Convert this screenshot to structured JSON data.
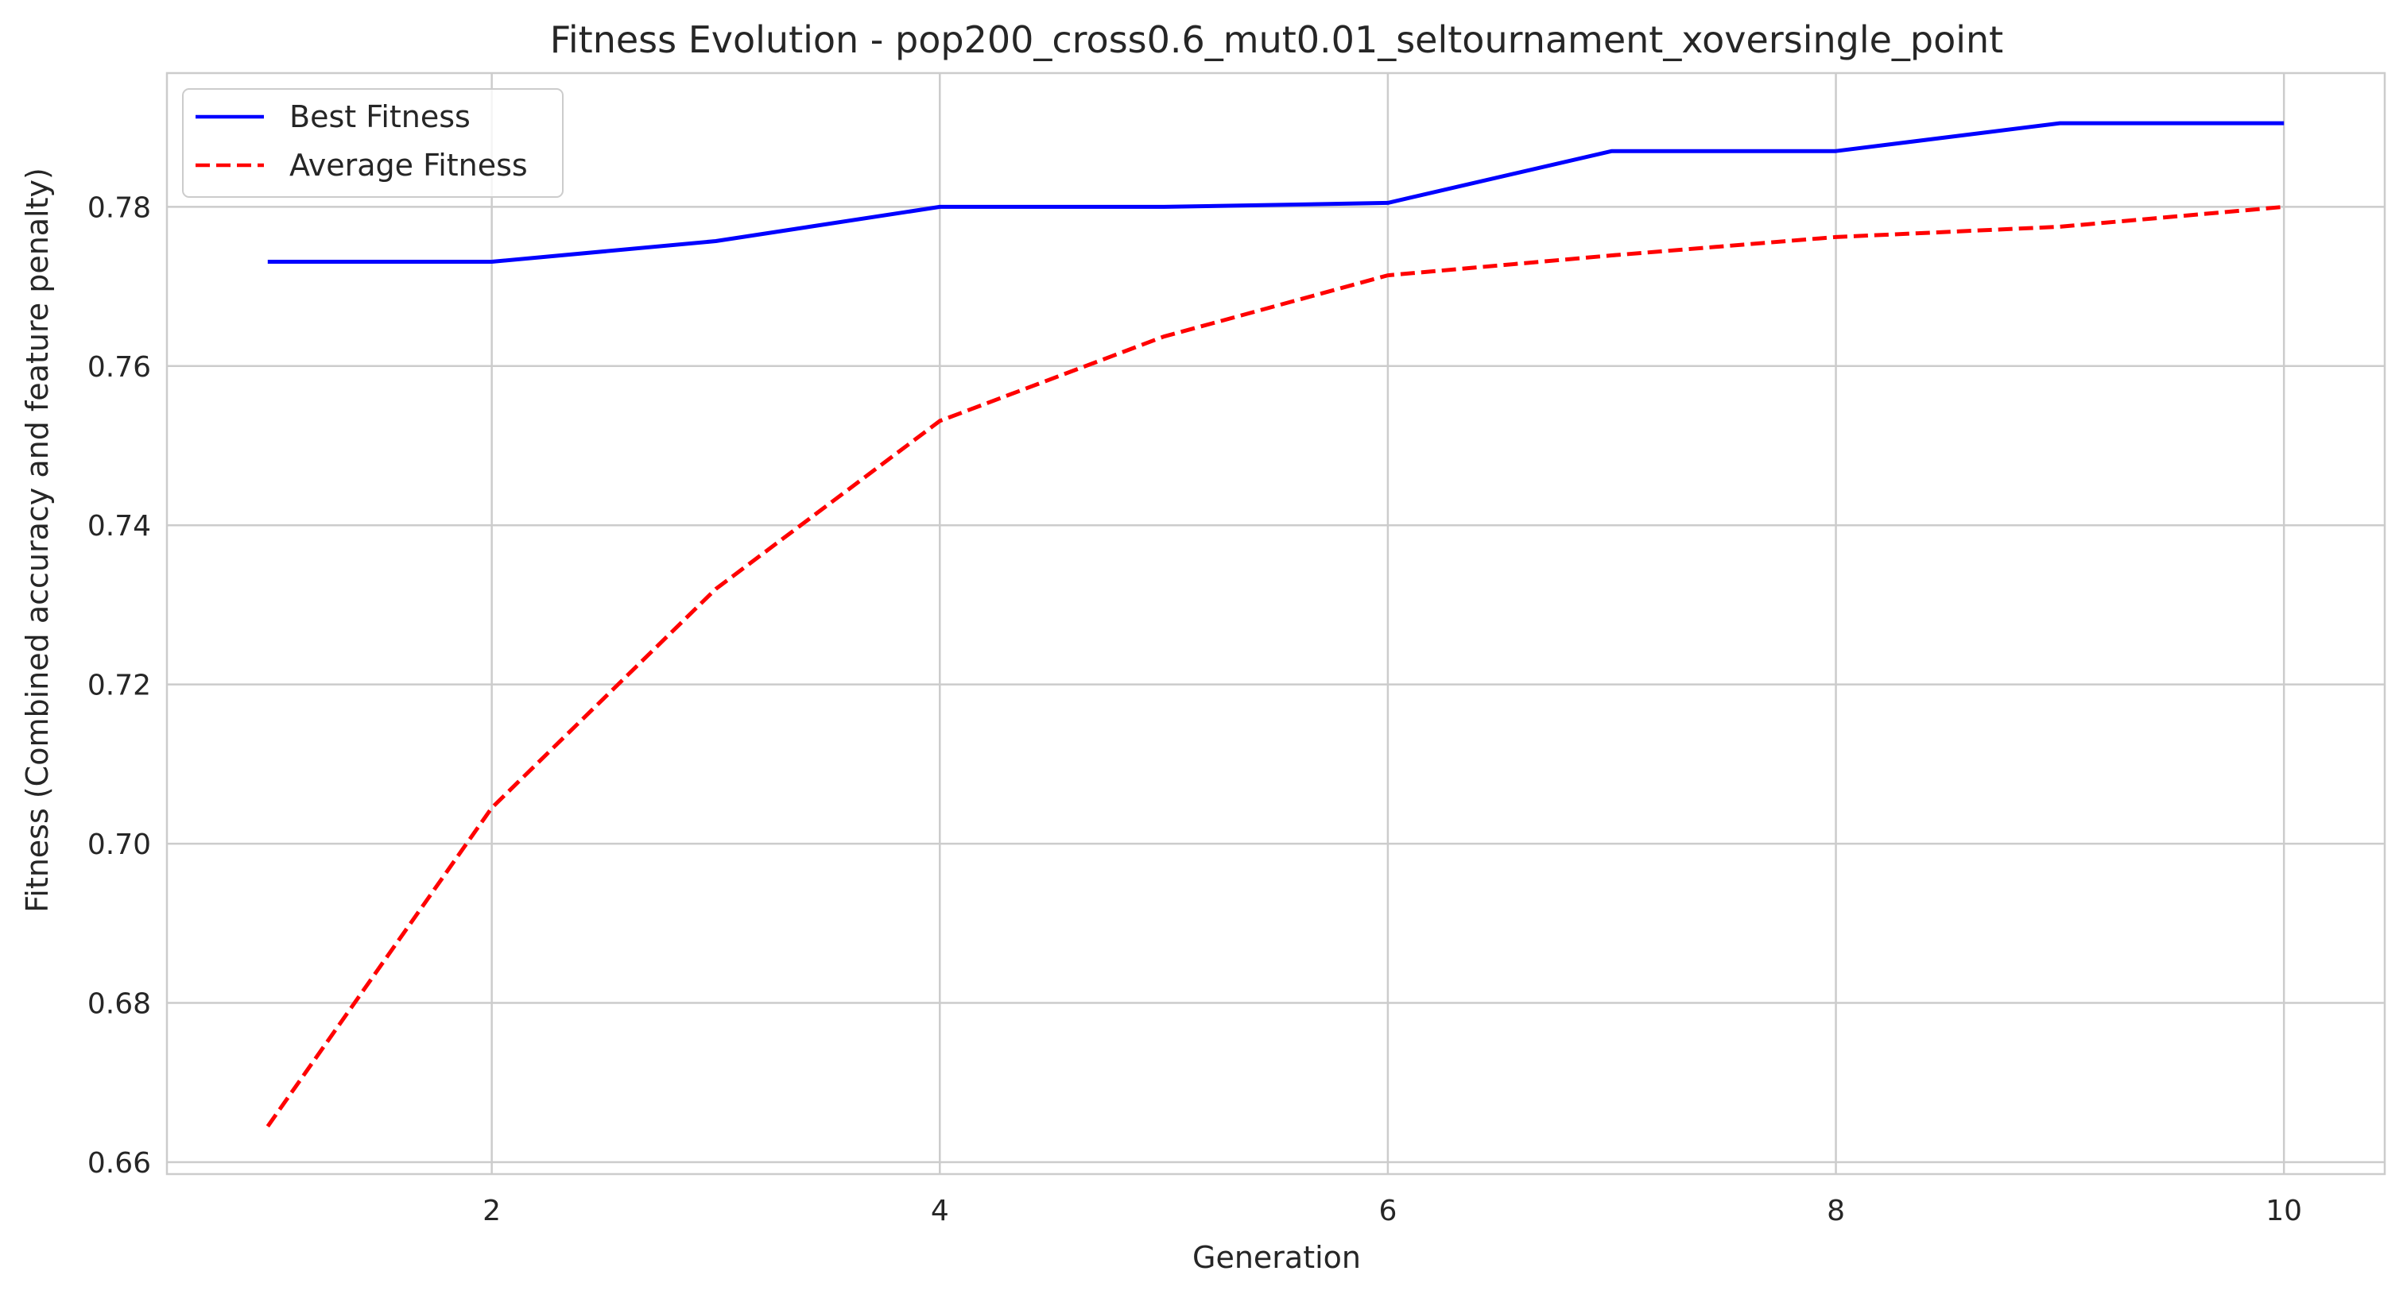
{
  "chart_data": {
    "type": "line",
    "title": "Fitness Evolution - pop200_cross0.6_mut0.01_seltournament_xoversingle_point",
    "xlabel": "Generation",
    "ylabel": "Fitness (Combined accuracy and feature penalty)",
    "x": [
      1,
      2,
      3,
      4,
      5,
      6,
      7,
      8,
      9,
      10
    ],
    "xlim": [
      0.55,
      10.45
    ],
    "ylim": [
      0.6585,
      0.7968
    ],
    "xticks": [
      2,
      4,
      6,
      8,
      10
    ],
    "xtick_labels": [
      "2",
      "4",
      "6",
      "8",
      "10"
    ],
    "yticks": [
      0.66,
      0.68,
      0.7,
      0.72,
      0.74,
      0.76,
      0.78
    ],
    "ytick_labels": [
      "0.66",
      "0.68",
      "0.70",
      "0.72",
      "0.74",
      "0.76",
      "0.78"
    ],
    "grid": true,
    "legend_position": "top-left",
    "series": [
      {
        "name": "Best Fitness",
        "color": "#0000ff",
        "style": "solid",
        "values": [
          0.7731,
          0.7731,
          0.7757,
          0.78,
          0.78,
          0.7805,
          0.787,
          0.787,
          0.7905,
          0.7905
        ]
      },
      {
        "name": "Average Fitness",
        "color": "#ff0000",
        "style": "dashed",
        "values": [
          0.6645,
          0.7045,
          0.732,
          0.7531,
          0.7637,
          0.7714,
          0.7739,
          0.7762,
          0.7775,
          0.78
        ]
      }
    ]
  }
}
